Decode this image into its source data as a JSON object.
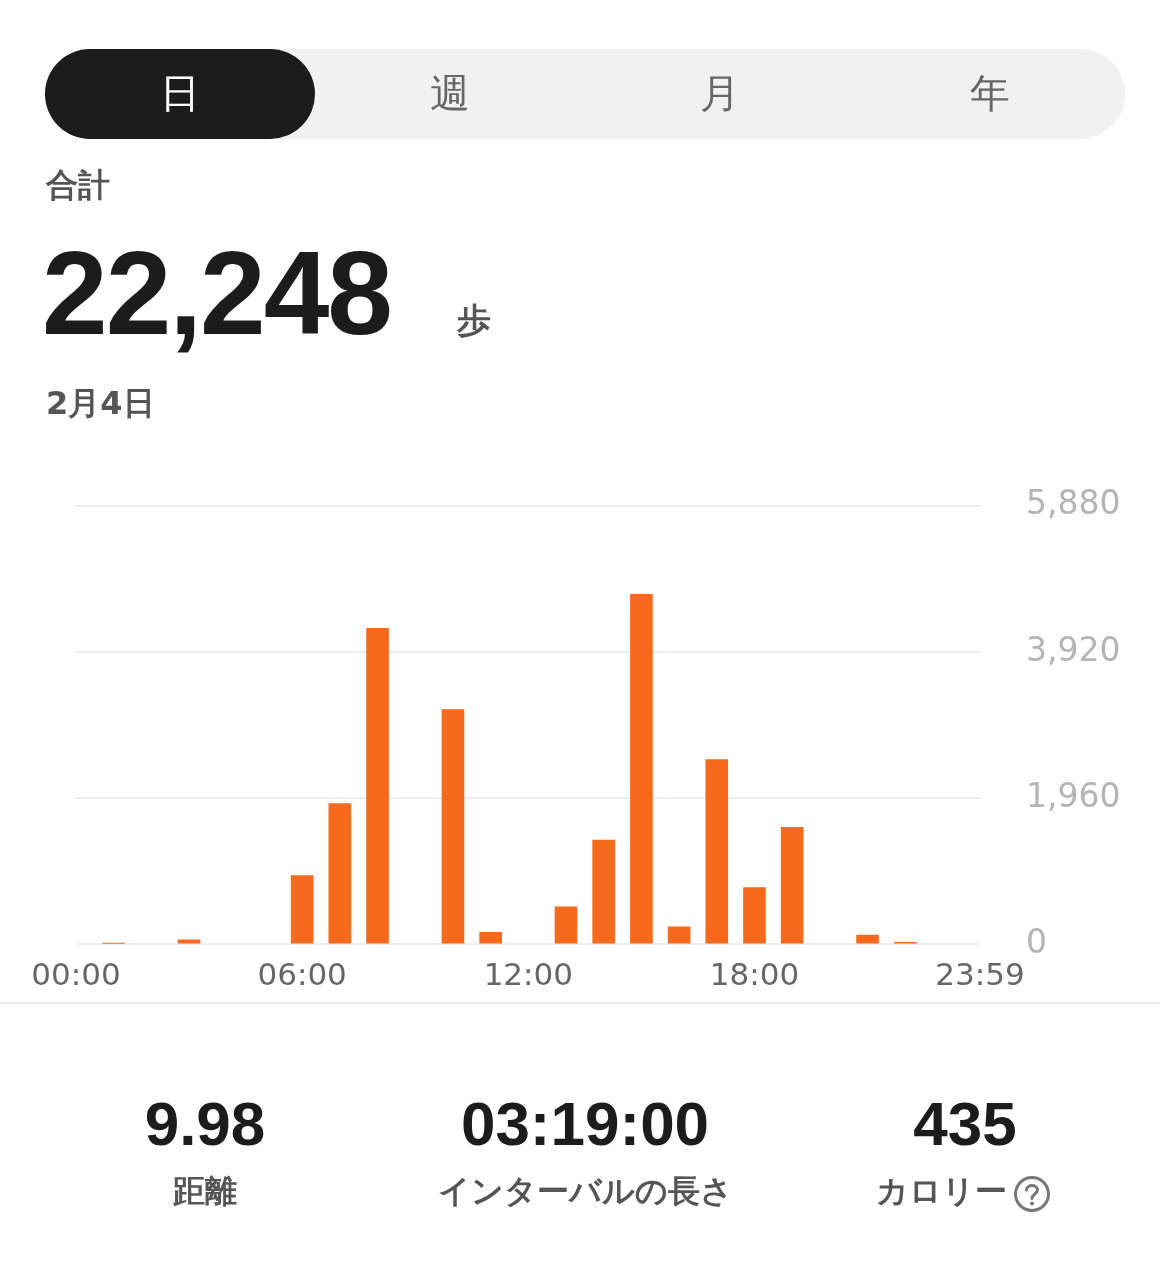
{
  "chart_data": {
    "type": "bar",
    "title": "22,248",
    "subtitle": "2月4日",
    "annotations": [
      "日",
      "週",
      "月",
      "年",
      "合計",
      "歩",
      "9.98",
      "距離",
      "03:19:00",
      "インターバルの長さ",
      "435",
      "カロリー"
    ],
    "x": [
      1,
      3,
      6,
      7,
      8,
      10,
      11,
      13,
      14,
      15,
      16,
      17,
      18,
      19,
      21,
      22
    ],
    "values": [
      10,
      60,
      919,
      1887,
      4238,
      3148,
      159,
      502,
      1397,
      4692,
      233,
      2475,
      760,
      1568,
      123,
      25
    ],
    "color": "#f56a1c",
    "xlim": [
      0,
      23.983
    ],
    "xticks": [
      {
        "value": 0,
        "label": "00:00"
      },
      {
        "value": 6,
        "label": "06:00"
      },
      {
        "value": 12,
        "label": "12:00"
      },
      {
        "value": 18,
        "label": "18:00"
      },
      {
        "value": 23.983,
        "label": "23:59"
      }
    ],
    "ylim": [
      0,
      5880
    ],
    "yticks": [
      {
        "value": 0,
        "label": "0"
      },
      {
        "value": 1960,
        "label": "1,960"
      },
      {
        "value": 3920,
        "label": "3,920"
      },
      {
        "value": 5880,
        "label": "5,880"
      }
    ],
    "grid": "y",
    "legend": false
  }
}
